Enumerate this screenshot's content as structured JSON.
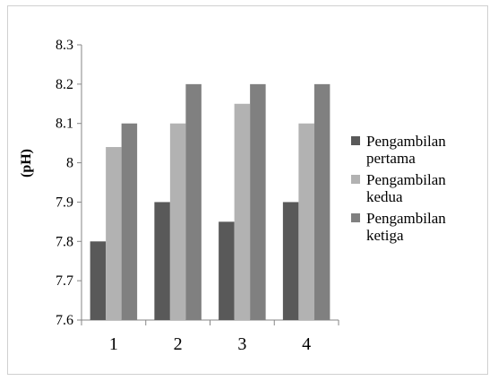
{
  "chart_data": {
    "type": "bar",
    "title": "",
    "xlabel": "",
    "ylabel": "(pH)",
    "categories": [
      "1",
      "2",
      "3",
      "4"
    ],
    "series": [
      {
        "name": "Pengambilan pertama",
        "color": "#595959",
        "values": [
          7.8,
          7.9,
          7.85,
          7.9
        ]
      },
      {
        "name": "Pengambilan kedua",
        "color": "#b2b2b2",
        "values": [
          8.04,
          8.1,
          8.15,
          8.1
        ]
      },
      {
        "name": "Pengambilan ketiga",
        "color": "#808080",
        "values": [
          8.1,
          8.2,
          8.2,
          8.2
        ]
      }
    ],
    "ylim": [
      7.6,
      8.3
    ],
    "yticks": [
      "7.6",
      "7.7",
      "7.8",
      "7.9",
      "8",
      "8.1",
      "8.2",
      "8.3"
    ],
    "grid": false,
    "legend": "right"
  }
}
